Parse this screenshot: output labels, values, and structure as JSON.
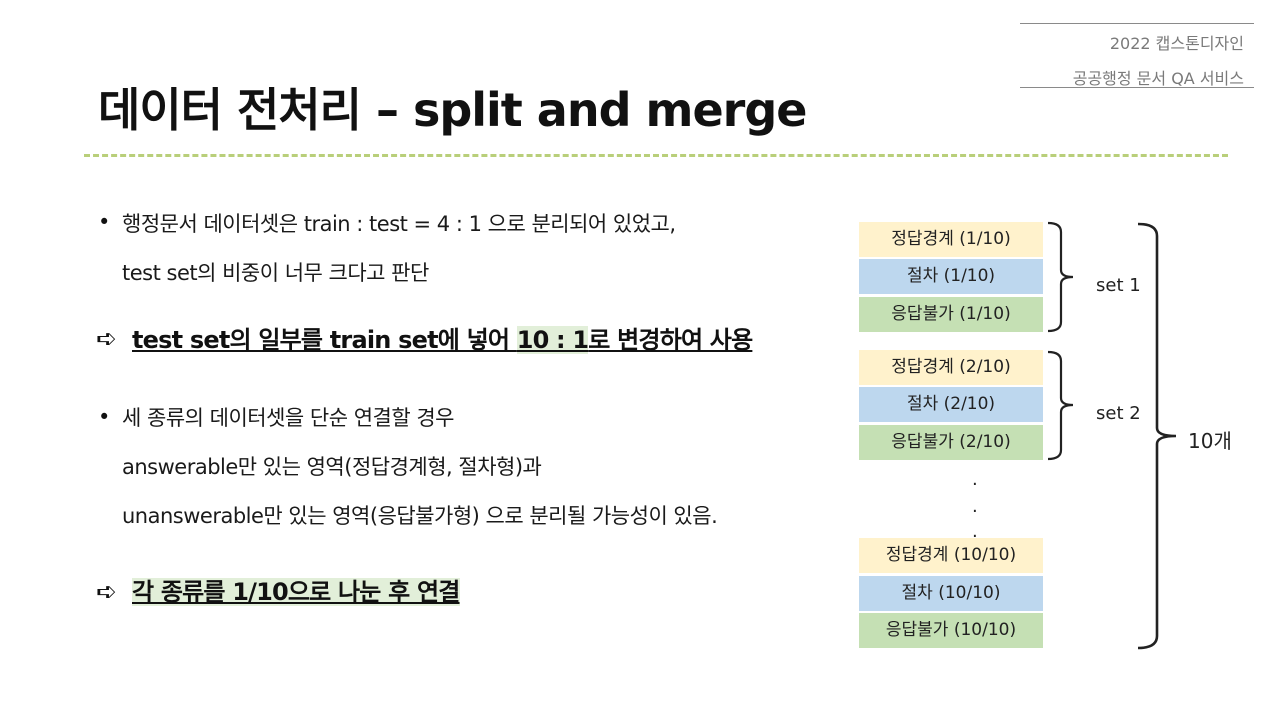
{
  "header": {
    "line1": "2022 캡스톤디자인",
    "line2": "공공행정 문서 QA 서비스"
  },
  "title": "데이터 전처리 – split and merge",
  "content": {
    "bullet_glyph": "•",
    "arrow_glyph": "➪",
    "section1": {
      "line1": "행정문서 데이터셋은 train : test = 4 : 1 으로 분리되어 있었고,",
      "line2": "test set의 비중이 너무 크다고 판단",
      "conclusion_plain": "test set의 일부를 train set에 넣어 ",
      "conclusion_highlight": "10 : 1",
      "conclusion_rest": "로 변경하여 사용"
    },
    "section2": {
      "line1": "세 종류의 데이터셋을 단순 연결할 경우",
      "line2": "answerable만 있는 영역(정답경계형, 절차형)과",
      "line3": "unanswerable만 있는 영역(응답불가형) 으로 분리될 가능성이 있음.",
      "conclusion": "각 종류를 1/10으로 나눈 후 연결"
    }
  },
  "diagram": {
    "colors": {
      "yellow": "#fff2cc",
      "blue": "#bdd7ee",
      "green": "#c5e0b4"
    },
    "set1": [
      "정답경계 (1/10)",
      "절차 (1/10)",
      "응답불가 (1/10)"
    ],
    "set2": [
      "정답경계 (2/10)",
      "절차 (2/10)",
      "응답불가 (2/10)"
    ],
    "set10": [
      "정답경계 (10/10)",
      "절차 (10/10)",
      "응답불가 (10/10)"
    ],
    "ellipsis": "·",
    "set1_label": "set 1",
    "set2_label": "set 2",
    "total_label": "10개"
  }
}
